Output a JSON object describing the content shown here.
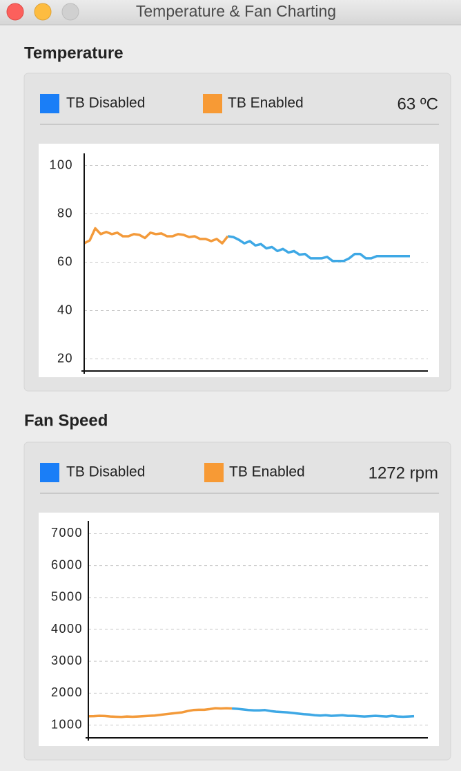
{
  "window": {
    "title": "Temperature & Fan Charting"
  },
  "chart_data": [
    {
      "type": "line",
      "title": "Temperature",
      "reading": "63 ºC",
      "ylim": [
        15,
        105
      ],
      "yticks": [
        20,
        40,
        60,
        80,
        100
      ],
      "grid": true,
      "series": [
        {
          "name": "TB Disabled",
          "color": "#3ea8e5",
          "swatch_color": "#1a7ef7",
          "values": [
            null,
            null,
            null,
            null,
            null,
            null,
            null,
            null,
            null,
            null,
            null,
            null,
            null,
            null,
            null,
            null,
            null,
            null,
            null,
            null,
            null,
            null,
            null,
            null,
            null,
            null,
            70.7,
            70.4,
            69.3,
            67.8,
            68.7,
            66.9,
            67.5,
            65.7,
            66.3,
            64.6,
            65.5,
            64.0,
            64.6,
            63.1,
            63.4,
            61.6,
            61.6,
            61.6,
            62.2,
            60.5,
            60.5,
            60.5,
            61.6,
            63.4,
            63.4,
            61.6,
            61.6,
            62.5,
            62.5,
            62.5,
            62.5,
            62.5,
            62.5,
            62.5
          ]
        },
        {
          "name": "TB Enabled",
          "color": "#f39a3a",
          "swatch_color": "#f79a35",
          "values": [
            67.8,
            69,
            74,
            71.6,
            72.5,
            71.6,
            72.2,
            70.7,
            70.7,
            71.6,
            71.3,
            70,
            72.2,
            71.6,
            71.9,
            70.7,
            70.7,
            71.6,
            71.3,
            70.4,
            70.7,
            69.6,
            69.6,
            68.7,
            69.6,
            67.8,
            70.7,
            null,
            null,
            null,
            null,
            null,
            null,
            null,
            null,
            null,
            null,
            null,
            null,
            null,
            null,
            null,
            null,
            null,
            null,
            null,
            null,
            null,
            null,
            null,
            null,
            null,
            null,
            null,
            null,
            null,
            null,
            null,
            null,
            null
          ]
        }
      ]
    },
    {
      "type": "line",
      "title": "Fan Speed",
      "reading": "1272 rpm",
      "ylim": [
        600,
        7400
      ],
      "yticks": [
        1000,
        2000,
        3000,
        4000,
        5000,
        6000,
        7000
      ],
      "grid": true,
      "series": [
        {
          "name": "TB Disabled",
          "color": "#3ea8e5",
          "swatch_color": "#1a7ef7",
          "values": [
            null,
            null,
            null,
            null,
            null,
            null,
            null,
            null,
            null,
            null,
            null,
            null,
            null,
            null,
            null,
            null,
            null,
            null,
            null,
            null,
            null,
            null,
            null,
            null,
            null,
            null,
            1520,
            1510,
            1490,
            1470,
            1460,
            1460,
            1470,
            1440,
            1420,
            1410,
            1400,
            1380,
            1360,
            1340,
            1330,
            1310,
            1300,
            1310,
            1290,
            1300,
            1310,
            1290,
            1290,
            1280,
            1270,
            1280,
            1290,
            1280,
            1270,
            1290,
            1270,
            1260,
            1270,
            1280
          ]
        },
        {
          "name": "TB Enabled",
          "color": "#f39a3a",
          "swatch_color": "#f79a35",
          "values": [
            1275,
            1280,
            1290,
            1285,
            1270,
            1260,
            1255,
            1270,
            1260,
            1270,
            1280,
            1290,
            1300,
            1320,
            1340,
            1360,
            1380,
            1400,
            1440,
            1470,
            1480,
            1480,
            1500,
            1530,
            1520,
            1530,
            1520,
            null,
            null,
            null,
            null,
            null,
            null,
            null,
            null,
            null,
            null,
            null,
            null,
            null,
            null,
            null,
            null,
            null,
            null,
            null,
            null,
            null,
            null,
            null,
            null,
            null,
            null,
            null,
            null,
            null,
            null,
            null,
            null,
            null
          ]
        }
      ]
    }
  ]
}
